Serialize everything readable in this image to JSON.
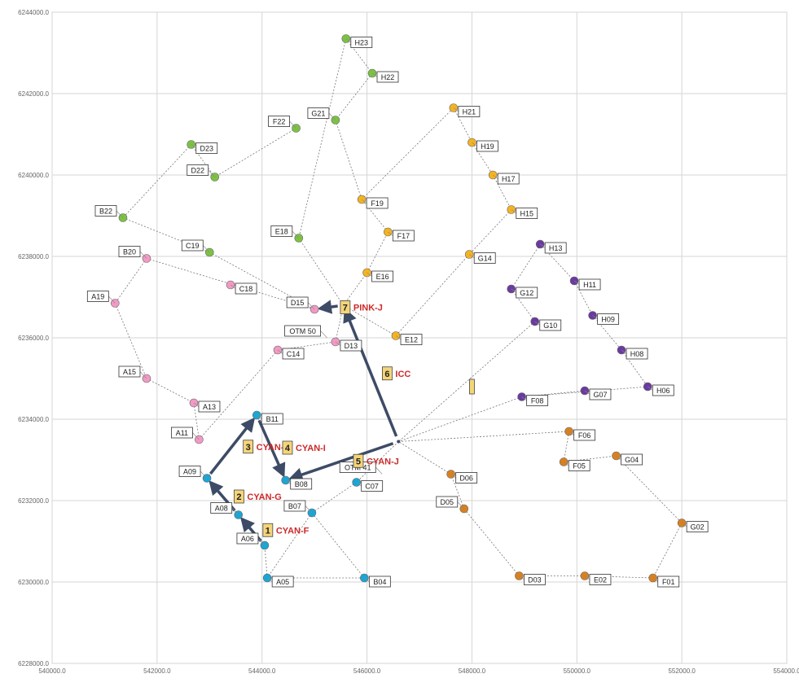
{
  "chart_data": {
    "type": "scatter",
    "title": "",
    "xlabel": "",
    "ylabel": "",
    "xlim": [
      540000,
      554000
    ],
    "ylim": [
      6228000,
      6244000
    ],
    "x_ticks": [
      540000,
      542000,
      544000,
      546000,
      548000,
      550000,
      552000,
      554000
    ],
    "y_ticks": [
      6228000,
      6230000,
      6232000,
      6234000,
      6236000,
      6238000,
      6240000,
      6242000,
      6244000
    ],
    "x_tick_labels": [
      "540000.0",
      "542000.0",
      "544000.0",
      "546000.0",
      "548000.0",
      "550000.0",
      "552000.0",
      "554000.0"
    ],
    "y_tick_labels": [
      "6228000.0",
      "6230000.0",
      "6232000.0",
      "6234000.0",
      "6236000.0",
      "6238000.0",
      "6240000.0",
      "6242000.0",
      "6244000.0"
    ],
    "grid": true,
    "colors": {
      "green": "#7cc242",
      "pink": "#f29ac4",
      "yellow": "#f5b320",
      "purple": "#6a3aa0",
      "orange": "#d9811f",
      "cyan": "#1aa6d6",
      "arrow": "#3d4b66",
      "route": "#777777"
    },
    "points": [
      {
        "id": "H23",
        "x": 545600,
        "y": 6243350,
        "group": "green",
        "label_side": "right"
      },
      {
        "id": "H22",
        "x": 546100,
        "y": 6242500,
        "group": "green",
        "label_side": "right"
      },
      {
        "id": "G21",
        "x": 545400,
        "y": 6241350,
        "group": "green",
        "label_side": "left"
      },
      {
        "id": "F22",
        "x": 544650,
        "y": 6241150,
        "group": "green",
        "label_side": "left"
      },
      {
        "id": "D23",
        "x": 542650,
        "y": 6240750,
        "group": "green",
        "label_side": "right"
      },
      {
        "id": "D22",
        "x": 543100,
        "y": 6239950,
        "group": "green",
        "label_side": "left"
      },
      {
        "id": "B22",
        "x": 541350,
        "y": 6238950,
        "group": "green",
        "label_side": "left"
      },
      {
        "id": "E18",
        "x": 544700,
        "y": 6238450,
        "group": "green",
        "label_side": "left"
      },
      {
        "id": "C19",
        "x": 543000,
        "y": 6238100,
        "group": "green",
        "label_side": "left"
      },
      {
        "id": "B20",
        "x": 541800,
        "y": 6237950,
        "group": "pink",
        "label_side": "left"
      },
      {
        "id": "C18",
        "x": 543400,
        "y": 6237300,
        "group": "pink",
        "label_side": "right"
      },
      {
        "id": "A19",
        "x": 541200,
        "y": 6236850,
        "group": "pink",
        "label_side": "left"
      },
      {
        "id": "D15",
        "x": 545000,
        "y": 6236700,
        "group": "pink",
        "label_side": "left"
      },
      {
        "id": "C14",
        "x": 544300,
        "y": 6235700,
        "group": "pink",
        "label_side": "right"
      },
      {
        "id": "D13",
        "x": 545400,
        "y": 6235900,
        "group": "pink",
        "label_side": "right"
      },
      {
        "id": "A15",
        "x": 541800,
        "y": 6235000,
        "group": "pink",
        "label_side": "left"
      },
      {
        "id": "A13",
        "x": 542700,
        "y": 6234400,
        "group": "pink",
        "label_side": "right"
      },
      {
        "id": "A11",
        "x": 542800,
        "y": 6233500,
        "group": "pink",
        "label_side": "left"
      },
      {
        "id": "H21",
        "x": 547650,
        "y": 6241650,
        "group": "yellow",
        "label_side": "right"
      },
      {
        "id": "H19",
        "x": 548000,
        "y": 6240800,
        "group": "yellow",
        "label_side": "right"
      },
      {
        "id": "H17",
        "x": 548400,
        "y": 6240000,
        "group": "yellow",
        "label_side": "right"
      },
      {
        "id": "F19",
        "x": 545900,
        "y": 6239400,
        "group": "yellow",
        "label_side": "right"
      },
      {
        "id": "H15",
        "x": 548750,
        "y": 6239150,
        "group": "yellow",
        "label_side": "right"
      },
      {
        "id": "F17",
        "x": 546400,
        "y": 6238600,
        "group": "yellow",
        "label_side": "right"
      },
      {
        "id": "G14",
        "x": 547950,
        "y": 6238050,
        "group": "yellow",
        "label_side": "right"
      },
      {
        "id": "E16",
        "x": 546000,
        "y": 6237600,
        "group": "yellow",
        "label_side": "right"
      },
      {
        "id": "E12",
        "x": 546550,
        "y": 6236050,
        "group": "yellow",
        "label_side": "right"
      },
      {
        "id": "H13",
        "x": 549300,
        "y": 6238300,
        "group": "purple",
        "label_side": "right"
      },
      {
        "id": "H11",
        "x": 549950,
        "y": 6237400,
        "group": "purple",
        "label_side": "right"
      },
      {
        "id": "G12",
        "x": 548750,
        "y": 6237200,
        "group": "purple",
        "label_side": "right"
      },
      {
        "id": "H09",
        "x": 550300,
        "y": 6236550,
        "group": "purple",
        "label_side": "right"
      },
      {
        "id": "G10",
        "x": 549200,
        "y": 6236400,
        "group": "purple",
        "label_side": "right"
      },
      {
        "id": "H08",
        "x": 550850,
        "y": 6235700,
        "group": "purple",
        "label_side": "right"
      },
      {
        "id": "H06",
        "x": 551350,
        "y": 6234800,
        "group": "purple",
        "label_side": "right"
      },
      {
        "id": "G07",
        "x": 550150,
        "y": 6234700,
        "group": "purple",
        "label_side": "right"
      },
      {
        "id": "F08",
        "x": 548950,
        "y": 6234550,
        "group": "purple",
        "label_side": "right"
      },
      {
        "id": "F06",
        "x": 549850,
        "y": 6233700,
        "group": "orange",
        "label_side": "right"
      },
      {
        "id": "F05",
        "x": 549750,
        "y": 6232950,
        "group": "orange",
        "label_side": "right"
      },
      {
        "id": "G04",
        "x": 550750,
        "y": 6233100,
        "group": "orange",
        "label_side": "right"
      },
      {
        "id": "D06",
        "x": 547600,
        "y": 6232650,
        "group": "orange",
        "label_side": "right"
      },
      {
        "id": "G02",
        "x": 552000,
        "y": 6231450,
        "group": "orange",
        "label_side": "right"
      },
      {
        "id": "D05",
        "x": 547850,
        "y": 6231800,
        "group": "orange",
        "label_side": "left"
      },
      {
        "id": "D03",
        "x": 548900,
        "y": 6230150,
        "group": "orange",
        "label_side": "right"
      },
      {
        "id": "E02",
        "x": 550150,
        "y": 6230150,
        "group": "orange",
        "label_side": "right"
      },
      {
        "id": "F01",
        "x": 551450,
        "y": 6230100,
        "group": "orange",
        "label_side": "right"
      },
      {
        "id": "B11",
        "x": 543900,
        "y": 6234100,
        "group": "cyan",
        "label_side": "right"
      },
      {
        "id": "A09",
        "x": 542950,
        "y": 6232550,
        "group": "cyan",
        "label_side": "left"
      },
      {
        "id": "B08",
        "x": 544450,
        "y": 6232500,
        "group": "cyan",
        "label_side": "right"
      },
      {
        "id": "C07",
        "x": 545800,
        "y": 6232450,
        "group": "cyan",
        "label_side": "right"
      },
      {
        "id": "B07",
        "x": 544950,
        "y": 6231700,
        "group": "cyan",
        "label_side": "left"
      },
      {
        "id": "A08",
        "x": 543550,
        "y": 6231650,
        "group": "cyan",
        "label_side": "left"
      },
      {
        "id": "A06",
        "x": 544050,
        "y": 6230900,
        "group": "cyan",
        "label_side": "left"
      },
      {
        "id": "A05",
        "x": 544100,
        "y": 6230100,
        "group": "cyan",
        "label_side": "right"
      },
      {
        "id": "B04",
        "x": 545950,
        "y": 6230100,
        "group": "cyan",
        "label_side": "right"
      }
    ],
    "otm_points": [
      {
        "id": "OTM 50",
        "x": 545550,
        "y": 6236800
      },
      {
        "id": "OTM 41",
        "x": 546600,
        "y": 6233450
      }
    ],
    "routes": [
      [
        "H23",
        "H22"
      ],
      [
        "H23",
        "E18"
      ],
      [
        "H22",
        "G21"
      ],
      [
        "G21",
        "F19"
      ],
      [
        "F22",
        "D22"
      ],
      [
        "D22",
        "D23"
      ],
      [
        "D23",
        "B22"
      ],
      [
        "B22",
        "C19"
      ],
      [
        "C19",
        "D15"
      ],
      [
        "E18",
        "OTM 50"
      ],
      [
        "OTM 50",
        "E16"
      ],
      [
        "E16",
        "F17"
      ],
      [
        "F17",
        "F19"
      ],
      [
        "F19",
        "H21"
      ],
      [
        "H21",
        "H19"
      ],
      [
        "H19",
        "H17"
      ],
      [
        "H17",
        "H15"
      ],
      [
        "H15",
        "G14"
      ],
      [
        "G14",
        "E12"
      ],
      [
        "E12",
        "OTM 50"
      ],
      [
        "B20",
        "D15"
      ],
      [
        "B20",
        "A19"
      ],
      [
        "A19",
        "A15"
      ],
      [
        "A15",
        "A13"
      ],
      [
        "A13",
        "A11"
      ],
      [
        "A11",
        "C14"
      ],
      [
        "C14",
        "D13"
      ],
      [
        "D13",
        "OTM 50"
      ],
      [
        "H13",
        "G12"
      ],
      [
        "H13",
        "H11"
      ],
      [
        "H11",
        "H09"
      ],
      [
        "H09",
        "H08"
      ],
      [
        "H08",
        "H06"
      ],
      [
        "H06",
        "F08"
      ],
      [
        "F08",
        "OTM 41"
      ],
      [
        "G10",
        "OTM 41"
      ],
      [
        "G10",
        "G12"
      ],
      [
        "G07",
        "F08"
      ],
      [
        "OTM 41",
        "F06"
      ],
      [
        "F06",
        "F05"
      ],
      [
        "F05",
        "G04"
      ],
      [
        "G04",
        "G02"
      ],
      [
        "G02",
        "F01"
      ],
      [
        "F01",
        "E02"
      ],
      [
        "E02",
        "D03"
      ],
      [
        "D03",
        "D05"
      ],
      [
        "D05",
        "D06"
      ],
      [
        "D06",
        "OTM 41"
      ],
      [
        "OTM 41",
        "C07"
      ],
      [
        "C07",
        "B07"
      ],
      [
        "B07",
        "A05"
      ],
      [
        "A05",
        "B04"
      ],
      [
        "B04",
        "B07"
      ],
      [
        "A05",
        "A06"
      ],
      [
        "A06",
        "A08"
      ],
      [
        "A08",
        "A09"
      ],
      [
        "A09",
        "B11"
      ],
      [
        "B11",
        "B08"
      ]
    ],
    "steps": [
      {
        "num": "1",
        "name": "CYAN-F",
        "from": "A06",
        "to": "A08"
      },
      {
        "num": "2",
        "name": "CYAN-G",
        "from": "A08",
        "to": "A09"
      },
      {
        "num": "3",
        "name": "CYAN-H",
        "from": "A09",
        "to": "B11"
      },
      {
        "num": "4",
        "name": "CYAN-I",
        "from": "B11",
        "to": "B08"
      },
      {
        "num": "5",
        "name": "CYAN-J",
        "from": "OTM 41",
        "to": "B08"
      },
      {
        "num": "6",
        "name": "ICC",
        "from": "OTM 41",
        "to": "OTM 50"
      },
      {
        "num": "7",
        "name": "PINK-J",
        "from": "OTM 50",
        "to": "D15"
      }
    ],
    "marker_x": 548000,
    "marker_y": 6234800
  }
}
